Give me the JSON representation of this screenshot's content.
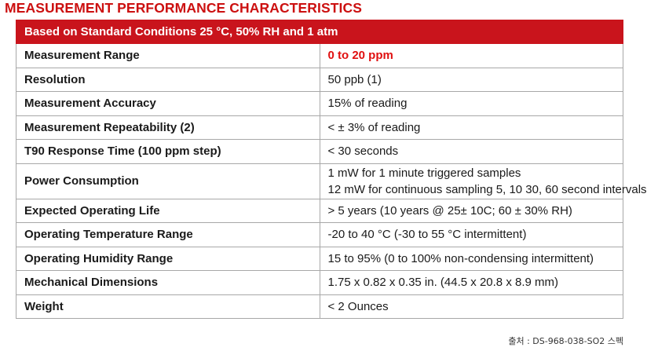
{
  "title": "MEASUREMENT PERFORMANCE CHARACTERISTICS",
  "table": {
    "header": "Based on Standard Conditions 25 °C, 50% RH and 1 atm",
    "rows": [
      {
        "label": "Measurement Range",
        "value": [
          "0 to 20 ppm"
        ],
        "highlight": true
      },
      {
        "label": "Resolution",
        "value": [
          "50 ppb (1)"
        ]
      },
      {
        "label": "Measurement Accuracy",
        "value": [
          "15% of reading"
        ]
      },
      {
        "label": "Measurement Repeatability (2)",
        "value": [
          "<  ± 3% of reading"
        ]
      },
      {
        "label": "T90 Response Time (100 ppm step)",
        "value": [
          "< 30 seconds"
        ]
      },
      {
        "label": "Power Consumption",
        "value": [
          "1 mW for 1 minute triggered samples",
          "12 mW for continuous sampling 5, 10 30, 60 second intervals"
        ]
      },
      {
        "label": "Expected Operating Life",
        "value": [
          "> 5 years (10 years @ 25± 10C; 60 ± 30% RH)"
        ]
      },
      {
        "label": "Operating Temperature Range",
        "value": [
          "-20 to 40 °C (-30 to 55 °C intermittent)"
        ]
      },
      {
        "label": "Operating Humidity Range",
        "value": [
          "15 to 95% (0 to 100% non-condensing intermittent)"
        ]
      },
      {
        "label": "Mechanical Dimensions",
        "value": [
          "1.75 x 0.82 x 0.35 in. (44.5 x 20.8 x 8.9 mm)"
        ]
      },
      {
        "label": "Weight",
        "value": [
          "< 2 Ounces"
        ]
      }
    ]
  },
  "source": "출처 : DS-968-038-SO2 스펙",
  "colors": {
    "title": "#cc1010",
    "header_bg": "#c9141c",
    "highlight": "#e01010",
    "border": "#a8a8a8"
  }
}
